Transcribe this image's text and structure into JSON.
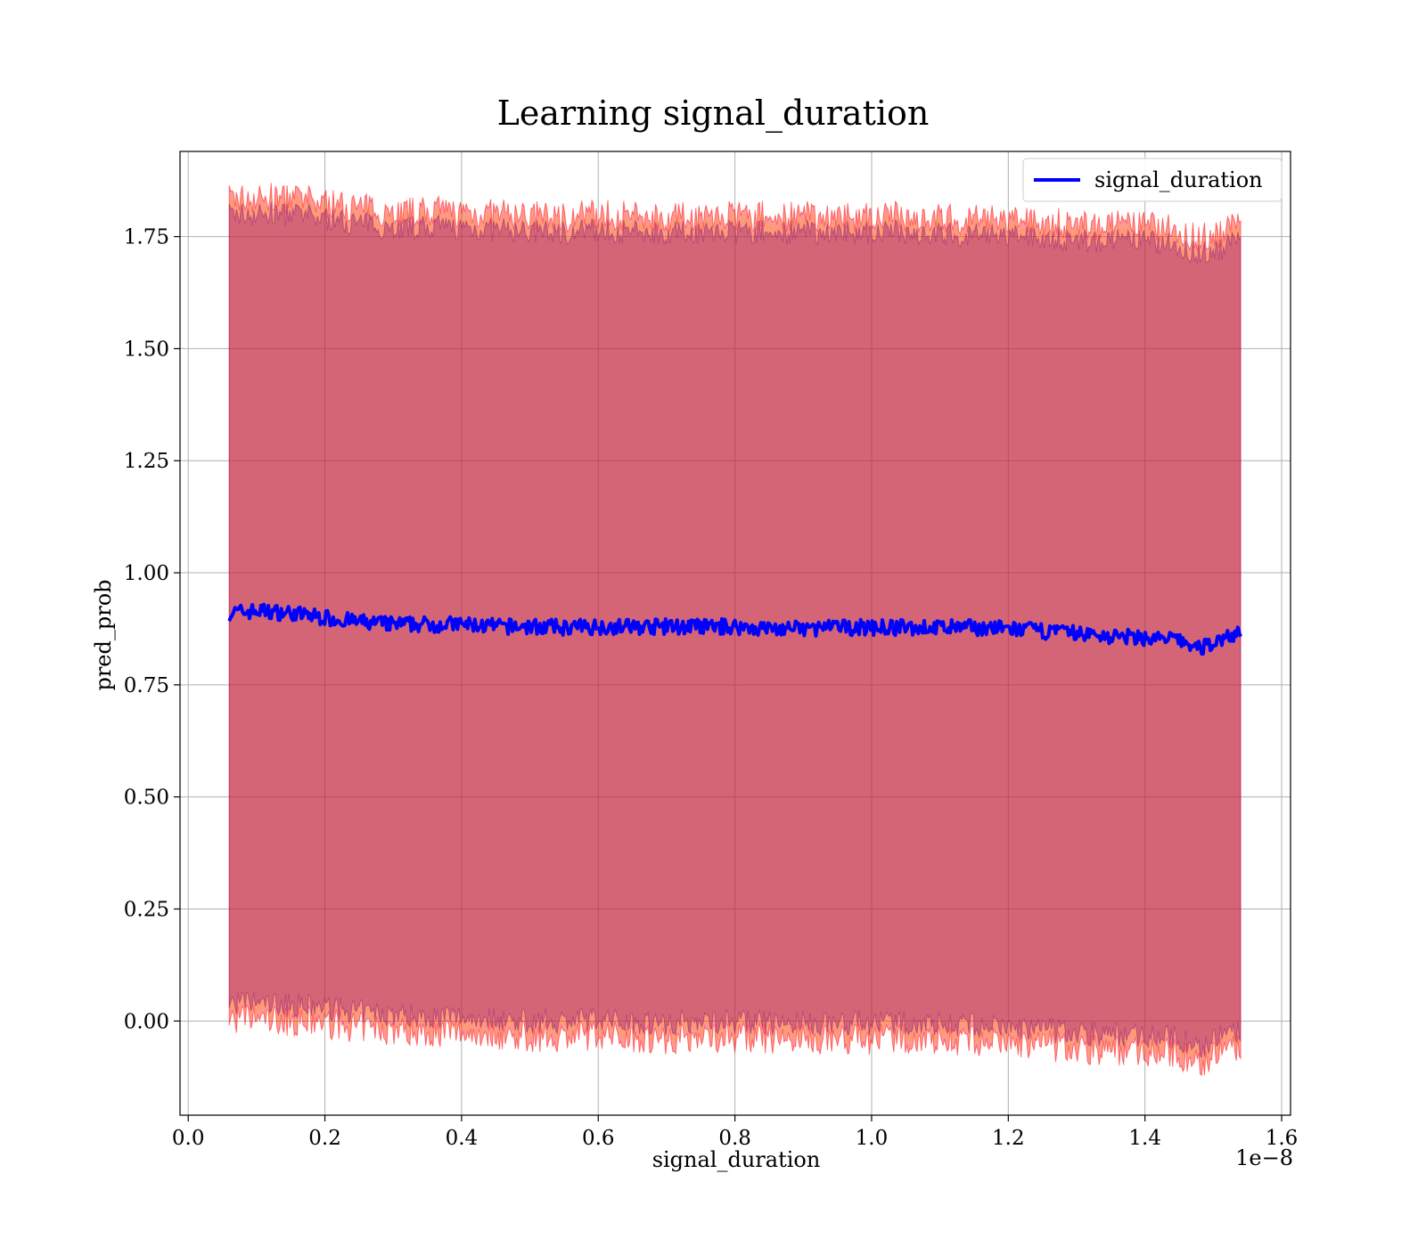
{
  "chart_data": {
    "type": "line",
    "title": "Learning signal_duration",
    "xlabel": "signal_duration",
    "ylabel": "pred_prob",
    "x_offset_label": "1e−8",
    "xlim": [
      -0.012,
      1.613
    ],
    "ylim": [
      -0.21,
      1.94
    ],
    "x_scale_factor": 1e-08,
    "x_ticks": [
      0.0,
      0.2,
      0.4,
      0.6,
      0.8,
      1.0,
      1.2,
      1.4,
      1.6
    ],
    "x_tick_labels": [
      "0.0",
      "0.2",
      "0.4",
      "0.6",
      "0.8",
      "1.0",
      "1.2",
      "1.4",
      "1.6"
    ],
    "y_ticks": [
      0.0,
      0.25,
      0.5,
      0.75,
      1.0,
      1.25,
      1.5,
      1.75
    ],
    "y_tick_labels": [
      "0.00",
      "0.25",
      "0.50",
      "0.75",
      "1.00",
      "1.25",
      "1.50",
      "1.75"
    ],
    "grid": true,
    "legend": {
      "position": "top-right",
      "entries": [
        "signal_duration"
      ]
    },
    "colors": {
      "line": "#0000ff",
      "band_outer": "#ff0000",
      "band_inner": "#800080",
      "band_mid": "#ffa500"
    },
    "series": [
      {
        "name": "signal_duration",
        "x": [
          0.06,
          0.1,
          0.15,
          0.2,
          0.25,
          0.3,
          0.35,
          0.4,
          0.45,
          0.5,
          0.55,
          0.6,
          0.65,
          0.7,
          0.75,
          0.8,
          0.85,
          0.9,
          0.95,
          1.0,
          1.05,
          1.1,
          1.15,
          1.2,
          1.25,
          1.3,
          1.35,
          1.4,
          1.45,
          1.48,
          1.5,
          1.54
        ],
        "values": [
          0.91,
          0.915,
          0.91,
          0.9,
          0.89,
          0.885,
          0.885,
          0.885,
          0.88,
          0.88,
          0.878,
          0.88,
          0.88,
          0.88,
          0.88,
          0.88,
          0.875,
          0.875,
          0.878,
          0.878,
          0.878,
          0.878,
          0.878,
          0.875,
          0.87,
          0.865,
          0.858,
          0.855,
          0.85,
          0.83,
          0.845,
          0.87
        ]
      }
    ],
    "band_upper": [
      1.82,
      1.82,
      1.82,
      1.81,
      1.8,
      1.79,
      1.79,
      1.79,
      1.785,
      1.78,
      1.78,
      1.785,
      1.78,
      1.78,
      1.78,
      1.78,
      1.78,
      1.78,
      1.78,
      1.78,
      1.78,
      1.775,
      1.775,
      1.77,
      1.77,
      1.76,
      1.76,
      1.76,
      1.75,
      1.73,
      1.74,
      1.76
    ],
    "band_lower": [
      0.02,
      0.02,
      0.015,
      0.01,
      0.0,
      -0.005,
      -0.01,
      -0.01,
      -0.015,
      -0.02,
      -0.02,
      -0.015,
      -0.02,
      -0.025,
      -0.02,
      -0.02,
      -0.025,
      -0.025,
      -0.025,
      -0.025,
      -0.025,
      -0.025,
      -0.03,
      -0.035,
      -0.04,
      -0.045,
      -0.05,
      -0.05,
      -0.06,
      -0.08,
      -0.06,
      -0.045
    ]
  }
}
